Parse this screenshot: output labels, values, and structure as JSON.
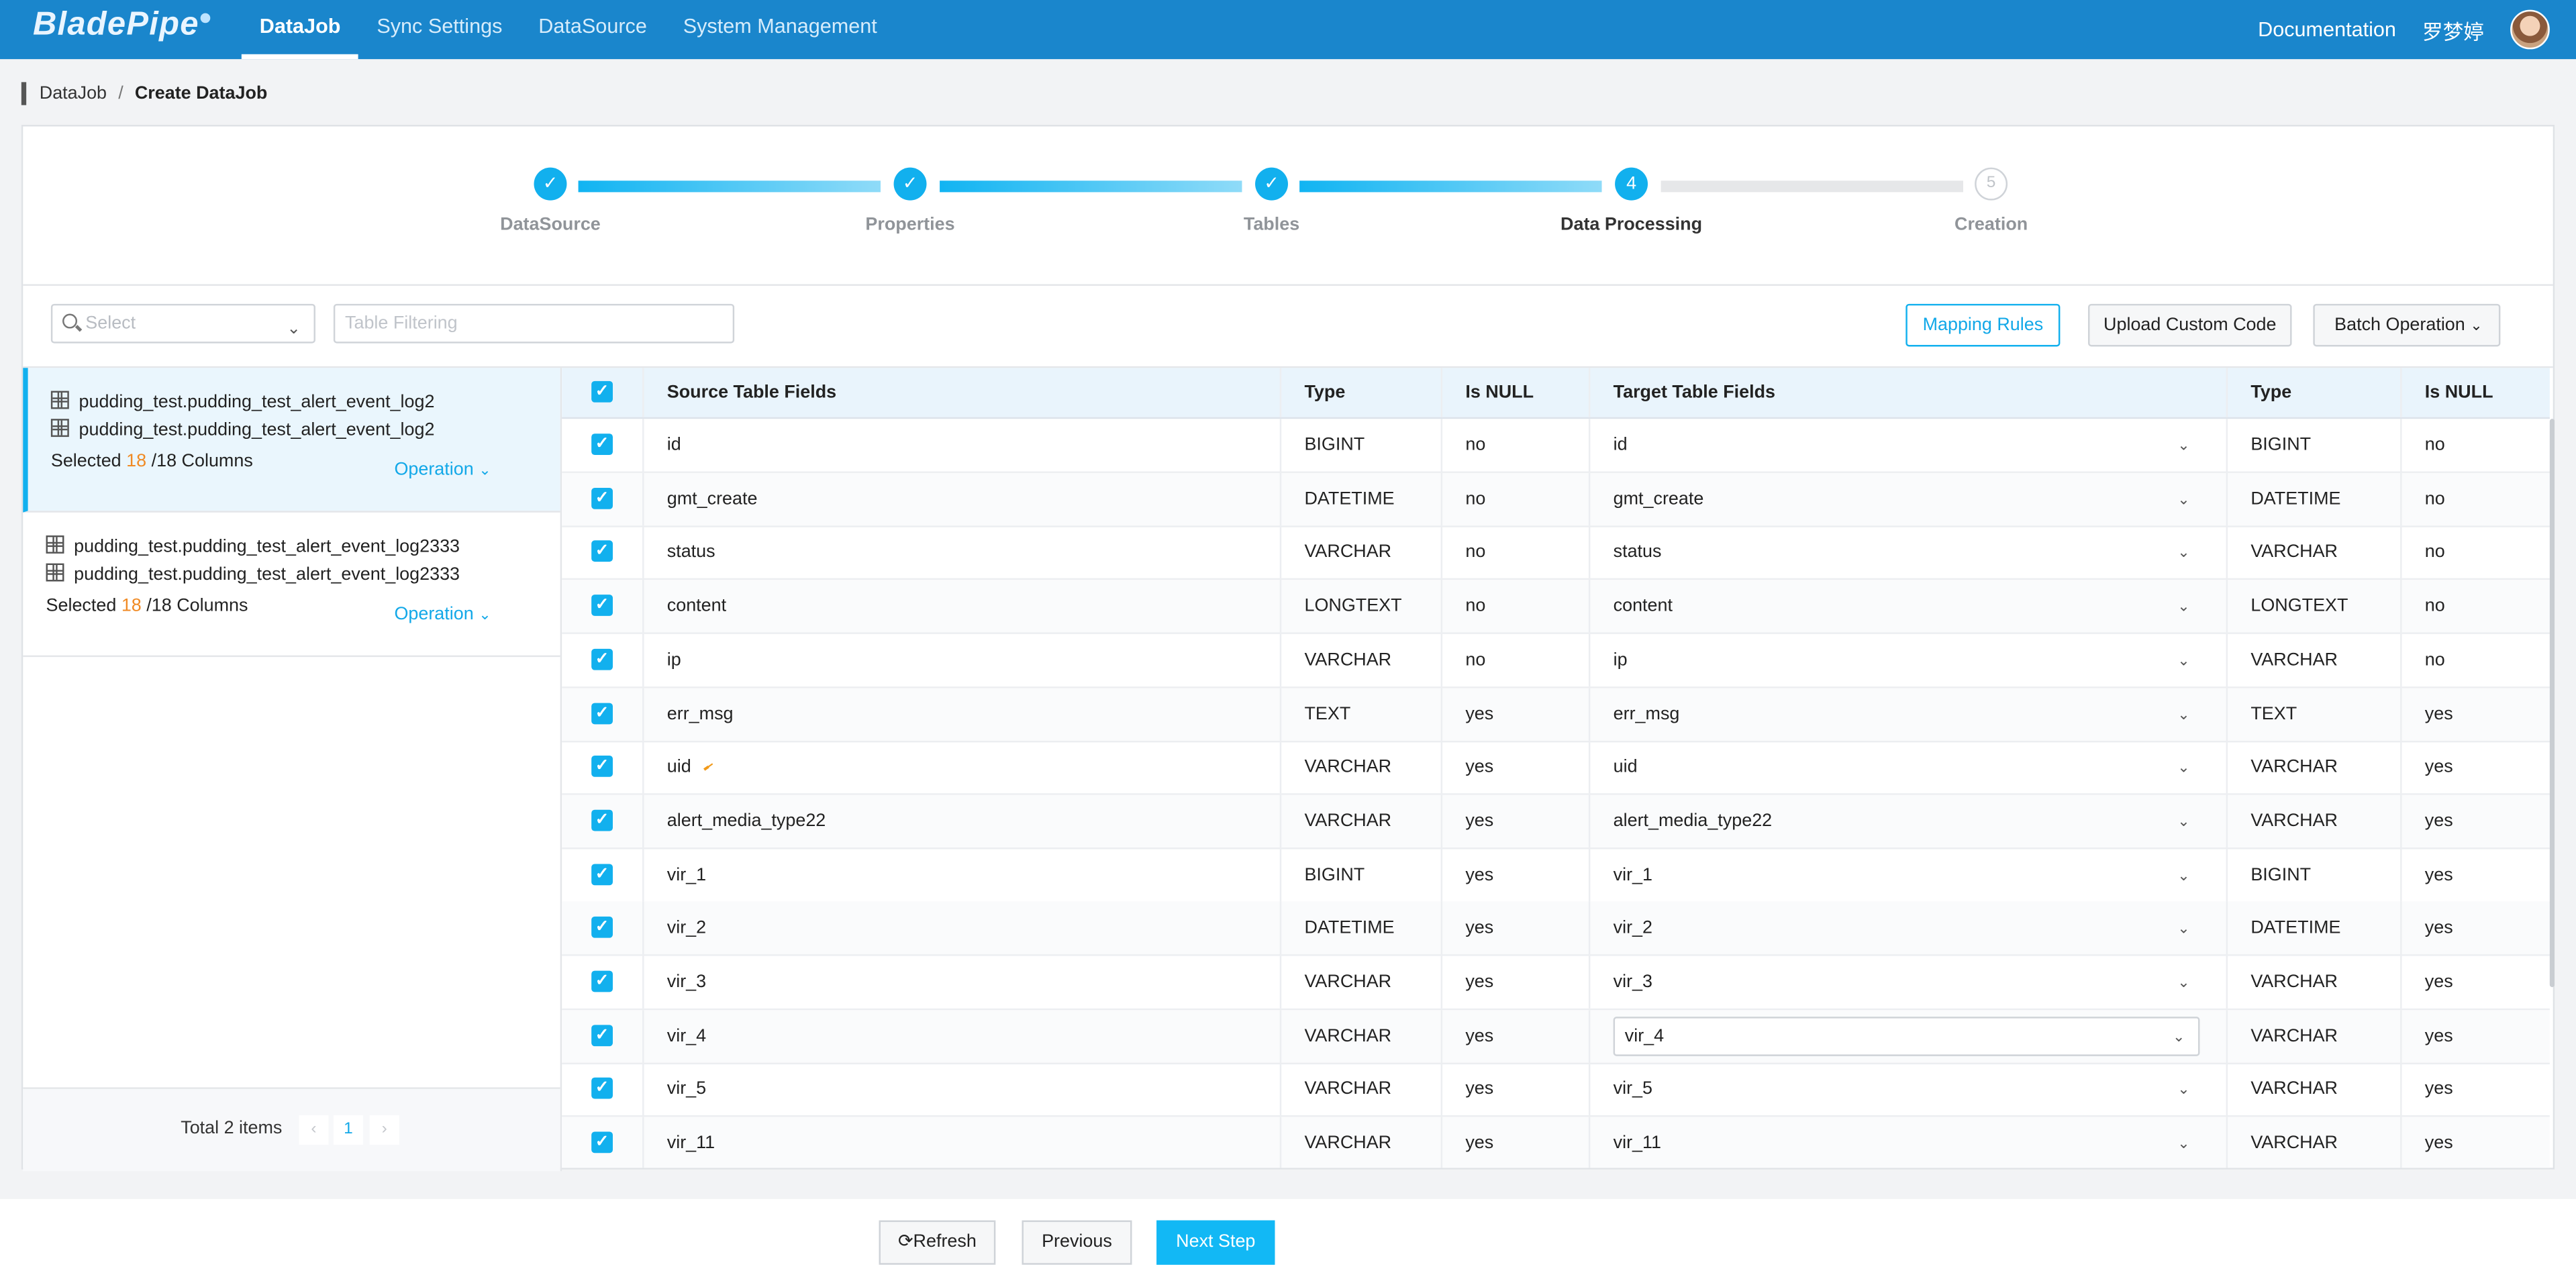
{
  "app": {
    "logo": "BladePipe"
  },
  "nav": {
    "items": [
      "DataJob",
      "Sync Settings",
      "DataSource",
      "System Management"
    ],
    "active": "DataJob"
  },
  "header_right": {
    "documentation": "Documentation",
    "user": "罗梦婷"
  },
  "breadcrumb": {
    "parent": "DataJob",
    "separator": "/",
    "current": "Create DataJob"
  },
  "steps": [
    {
      "label": "DataSource",
      "state": "done",
      "mark": "✓"
    },
    {
      "label": "Properties",
      "state": "done",
      "mark": "✓"
    },
    {
      "label": "Tables",
      "state": "done",
      "mark": "✓"
    },
    {
      "label": "Data Processing",
      "state": "active",
      "mark": "4"
    },
    {
      "label": "Creation",
      "state": "pending",
      "mark": "5"
    }
  ],
  "toolbar": {
    "select_placeholder": "Select",
    "filter_placeholder": "Table Filtering",
    "mapping_rules": "Mapping Rules",
    "upload_code": "Upload Custom Code",
    "batch_operation": "Batch Operation"
  },
  "table_list": [
    {
      "source": "pudding_test.pudding_test_alert_event_log2",
      "target": "pudding_test.pudding_test_alert_event_log2",
      "selected_prefix": "Selected",
      "selected": "18",
      "total_suffix": "/18 Columns",
      "operation": "Operation"
    },
    {
      "source": "pudding_test.pudding_test_alert_event_log2333",
      "target": "pudding_test.pudding_test_alert_event_log2333",
      "selected_prefix": "Selected",
      "selected": "18",
      "total_suffix": "/18 Columns",
      "operation": "Operation"
    }
  ],
  "pagination": {
    "total": "Total 2 items",
    "prev": "‹",
    "page": "1",
    "next": "›"
  },
  "columns": {
    "source_fields": "Source Table Fields",
    "type": "Type",
    "is_null": "Is NULL",
    "target_fields": "Target Table Fields",
    "target_type": "Type",
    "target_is_null": "Is NULL"
  },
  "rows": [
    {
      "source": "id",
      "type": "BIGINT",
      "null": "no",
      "target": "id",
      "ttype": "BIGINT",
      "tnull": "no"
    },
    {
      "source": "gmt_create",
      "type": "DATETIME",
      "null": "no",
      "target": "gmt_create",
      "ttype": "DATETIME",
      "tnull": "no"
    },
    {
      "source": "status",
      "type": "VARCHAR",
      "null": "no",
      "target": "status",
      "ttype": "VARCHAR",
      "tnull": "no"
    },
    {
      "source": "content",
      "type": "LONGTEXT",
      "null": "no",
      "target": "content",
      "ttype": "LONGTEXT",
      "tnull": "no"
    },
    {
      "source": "ip",
      "type": "VARCHAR",
      "null": "no",
      "target": "ip",
      "ttype": "VARCHAR",
      "tnull": "no"
    },
    {
      "source": "err_msg",
      "type": "TEXT",
      "null": "yes",
      "target": "err_msg",
      "ttype": "TEXT",
      "tnull": "yes"
    },
    {
      "source": "uid",
      "type": "VARCHAR",
      "null": "yes",
      "target": "uid",
      "ttype": "VARCHAR",
      "tnull": "yes"
    },
    {
      "source": "alert_media_type22",
      "type": "VARCHAR",
      "null": "yes",
      "target": "alert_media_type22",
      "ttype": "VARCHAR",
      "tnull": "yes"
    },
    {
      "source": "vir_1",
      "type": "BIGINT",
      "null": "yes",
      "target": "vir_1",
      "ttype": "BIGINT",
      "tnull": "yes"
    },
    {
      "source": "vir_2",
      "type": "DATETIME",
      "null": "yes",
      "target": "vir_2",
      "ttype": "DATETIME",
      "tnull": "yes"
    },
    {
      "source": "vir_3",
      "type": "VARCHAR",
      "null": "yes",
      "target": "vir_3",
      "ttype": "VARCHAR",
      "tnull": "yes"
    },
    {
      "source": "vir_4",
      "type": "VARCHAR",
      "null": "yes",
      "target": "vir_4",
      "ttype": "VARCHAR",
      "tnull": "yes"
    },
    {
      "source": "vir_5",
      "type": "VARCHAR",
      "null": "yes",
      "target": "vir_5",
      "ttype": "VARCHAR",
      "tnull": "yes"
    },
    {
      "source": "vir_11",
      "type": "VARCHAR",
      "null": "yes",
      "target": "vir_11",
      "ttype": "VARCHAR",
      "tnull": "yes"
    }
  ],
  "footer": {
    "refresh": "Refresh",
    "previous": "Previous",
    "next": "Next Step"
  },
  "colors": {
    "brand": "#1a86cc",
    "accent": "#12b0ee",
    "count": "#f08a24"
  }
}
